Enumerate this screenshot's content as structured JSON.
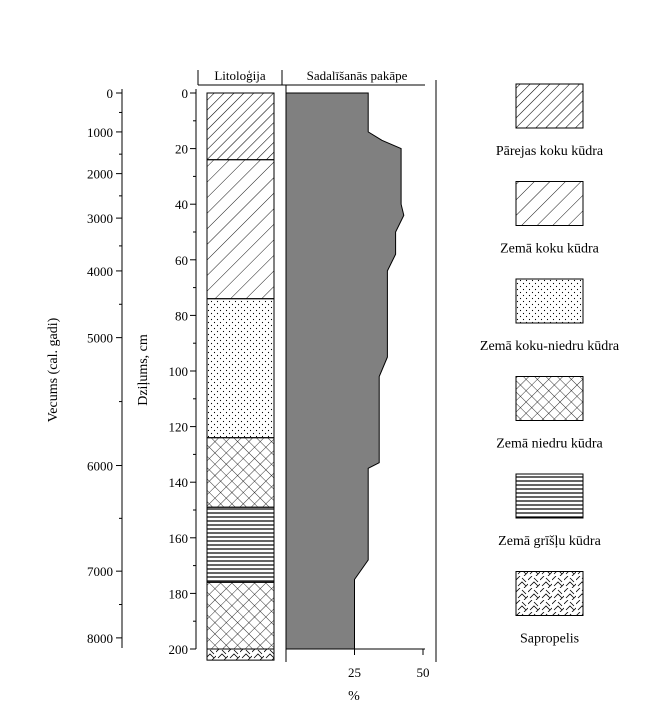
{
  "chart_data": {
    "type": "area",
    "panels": {
      "age_axis": {
        "label": "Vecums (cal. gadi)",
        "ticks": [
          {
            "label": "0",
            "depth": 0
          },
          {
            "label": "1000",
            "depth": 14
          },
          {
            "label": "2000",
            "depth": 29
          },
          {
            "label": "3000",
            "depth": 45
          },
          {
            "label": "4000",
            "depth": 64
          },
          {
            "label": "5000",
            "depth": 88
          },
          {
            "label": "6000",
            "depth": 134
          },
          {
            "label": "7000",
            "depth": 172
          },
          {
            "label": "8000",
            "depth": 196
          }
        ],
        "minor_ticks_depth": [
          7,
          22,
          37,
          55,
          76,
          111,
          153,
          184
        ]
      },
      "depth_axis": {
        "label": "Dziļums, cm",
        "ylim": [
          0,
          200
        ],
        "ticks": [
          "0",
          "20",
          "40",
          "60",
          "80",
          "100",
          "120",
          "140",
          "160",
          "180",
          "200"
        ],
        "tick_values": [
          0,
          20,
          40,
          60,
          80,
          100,
          120,
          140,
          160,
          180,
          200
        ]
      },
      "lithology": {
        "title": "Litoloģija",
        "layers": [
          {
            "from": 0,
            "to": 24,
            "pattern": "pat-transitional"
          },
          {
            "from": 24,
            "to": 74,
            "pattern": "pat-lowwood"
          },
          {
            "from": 74,
            "to": 124,
            "pattern": "pat-woodsedge"
          },
          {
            "from": 124,
            "to": 149,
            "pattern": "pat-sedge"
          },
          {
            "from": 149,
            "to": 176,
            "pattern": "pat-reed"
          },
          {
            "from": 176,
            "to": 200,
            "pattern": "pat-sedge"
          },
          {
            "from": 200,
            "to": 204,
            "pattern": "pat-sapropel"
          }
        ]
      },
      "decomposition": {
        "title": "Sadalīšanās pakāpe",
        "xlabel": "%",
        "xlim": [
          0,
          50
        ],
        "x_ticks": [
          "25",
          "50"
        ],
        "x_tick_values": [
          25,
          50
        ],
        "color": "#808080",
        "x": [
          30,
          30,
          35,
          42,
          42,
          43,
          40,
          40,
          37,
          37,
          37,
          34,
          34,
          34,
          30,
          30,
          30,
          25,
          25,
          25
        ],
        "y": [
          0,
          14,
          17,
          20,
          40,
          44,
          50,
          58,
          64,
          80,
          95,
          102,
          128,
          133,
          135,
          155,
          168,
          175,
          190,
          200
        ]
      }
    },
    "legend": [
      {
        "label": "Pārejas koku kūdra",
        "pattern": "pat-transitional"
      },
      {
        "label": "Zemā koku kūdra",
        "pattern": "pat-lowwood"
      },
      {
        "label": "Zemā koku-niedru kūdra",
        "pattern": "pat-woodsedge"
      },
      {
        "label": "Zemā niedru kūdra",
        "pattern": "pat-sedge"
      },
      {
        "label": "Zemā grīšļu kūdra",
        "pattern": "pat-reed"
      },
      {
        "label": "Sapropelis",
        "pattern": "pat-sapropel"
      }
    ]
  }
}
